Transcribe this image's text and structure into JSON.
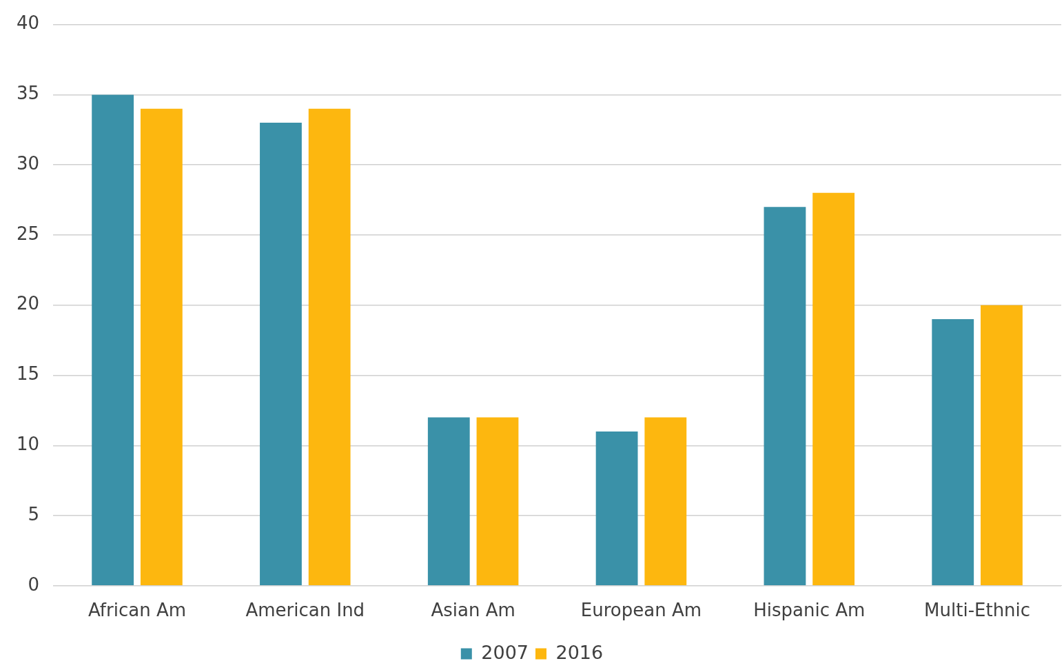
{
  "chart_data": {
    "type": "bar",
    "categories": [
      "African Am",
      "American Ind",
      "Asian Am",
      "European Am",
      "Hispanic Am",
      "Multi-Ethnic"
    ],
    "series": [
      {
        "name": "2007",
        "color": "#3a91a8",
        "values": [
          35,
          33,
          12,
          11,
          27,
          19
        ]
      },
      {
        "name": "2016",
        "color": "#fdb70f",
        "values": [
          34,
          34,
          12,
          12,
          28,
          20
        ]
      }
    ],
    "ylim": [
      0,
      40
    ],
    "yticks": [
      0,
      5,
      10,
      15,
      20,
      25,
      30,
      35,
      40
    ],
    "grid": "y",
    "legend": "bottom"
  }
}
